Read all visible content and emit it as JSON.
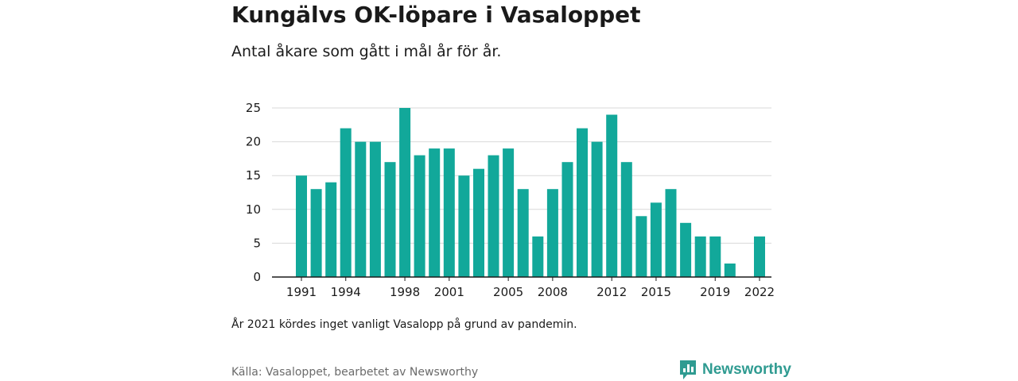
{
  "title": "Kungälvs OK-löpare i Vasaloppet",
  "subtitle": "Antal åkare som gått i mål år för år.",
  "note": "År 2021 kördes inget vanligt Vasalopp på grund av pandemin.",
  "source": "Källa: Vasaloppet, bearbetet av Newsworthy",
  "brand": {
    "name": "Newsworthy",
    "icon": "bar-chart-bubble-icon"
  },
  "colors": {
    "bar": "#12a89a",
    "grid": "#d9d9d9",
    "axis": "#1a1a1a",
    "brand": "#2f9b91"
  },
  "chart_data": {
    "type": "bar",
    "categories": [
      "1991",
      "1992",
      "1993",
      "1994",
      "1995",
      "1996",
      "1997",
      "1998",
      "1999",
      "2000",
      "2001",
      "2002",
      "2003",
      "2004",
      "2005",
      "2006",
      "2007",
      "2008",
      "2009",
      "2010",
      "2011",
      "2012",
      "2013",
      "2014",
      "2015",
      "2016",
      "2017",
      "2018",
      "2019",
      "2020",
      "2021",
      "2022"
    ],
    "values": [
      15,
      13,
      14,
      22,
      20,
      20,
      17,
      25,
      18,
      19,
      19,
      15,
      16,
      18,
      19,
      13,
      6,
      13,
      17,
      22,
      20,
      24,
      17,
      9,
      11,
      13,
      8,
      6,
      6,
      2,
      null,
      6
    ],
    "x_tick_labels": [
      "1991",
      "1994",
      "1998",
      "2001",
      "2005",
      "2008",
      "2012",
      "2015",
      "2019",
      "2022"
    ],
    "y_ticks": [
      0,
      5,
      10,
      15,
      20,
      25
    ],
    "ylim": [
      0,
      25
    ],
    "grid": true,
    "legend": false
  }
}
